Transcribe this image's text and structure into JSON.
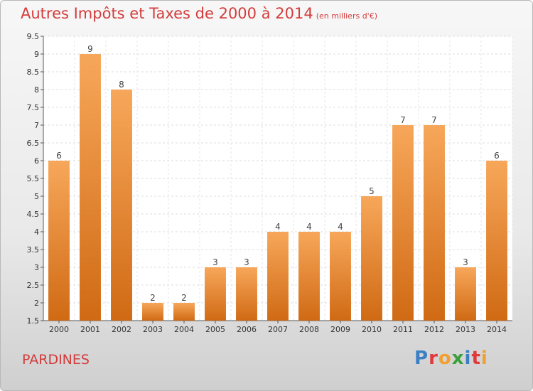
{
  "title": "Autres Impôts et Taxes de 2000 à 2014",
  "subtitle": "(en milliers d'€)",
  "commune": "PARDINES",
  "logo": {
    "text": "Proxiti",
    "colors": [
      "#3b7fc4",
      "#e03a3a",
      "#f0a030",
      "#3aa03a",
      "#3b7fc4",
      "#e03a3a",
      "#f0a030"
    ]
  },
  "chart_data": {
    "type": "bar",
    "categories": [
      "2000",
      "2001",
      "2002",
      "2003",
      "2004",
      "2005",
      "2006",
      "2007",
      "2008",
      "2009",
      "2010",
      "2011",
      "2012",
      "2013",
      "2014"
    ],
    "values": [
      6,
      9,
      8,
      2,
      2,
      3,
      3,
      4,
      4,
      4,
      5,
      7,
      7,
      3,
      6
    ],
    "data_labels": [
      "6",
      "9",
      "8",
      "2",
      "2",
      "3",
      "3",
      "4",
      "4",
      "4",
      "5",
      "7",
      "7",
      "3",
      "6"
    ],
    "yticks": [
      "1.5",
      "2",
      "2.5",
      "3",
      "3.5",
      "4",
      "4.5",
      "5",
      "5.5",
      "6",
      "6.5",
      "7",
      "7.5",
      "8",
      "8.5",
      "9",
      "9.5"
    ],
    "ylim": [
      1.5,
      9.5
    ],
    "grid": true,
    "bar_color_top": "#f7a75a",
    "bar_color_bottom": "#d06a14"
  }
}
